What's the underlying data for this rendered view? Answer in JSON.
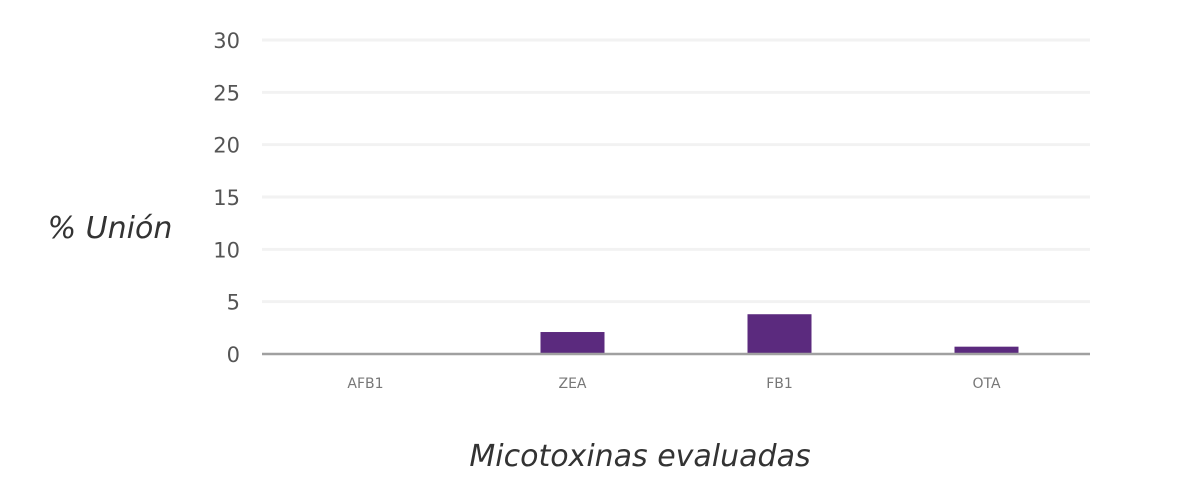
{
  "chart_data": {
    "type": "bar",
    "title": "",
    "xlabel": "Micotoxinas evaluadas",
    "ylabel": "% Unión",
    "categories": [
      "AFB1",
      "ZEA",
      "FB1",
      "OTA"
    ],
    "values": [
      0,
      2.1,
      3.8,
      0.7
    ],
    "ylim": [
      0,
      30
    ],
    "yticks": [
      "0",
      "5",
      "10",
      "15",
      "20",
      "25",
      "30"
    ],
    "grid": true,
    "legend": "none",
    "bar_color": "#5b2a7e"
  }
}
